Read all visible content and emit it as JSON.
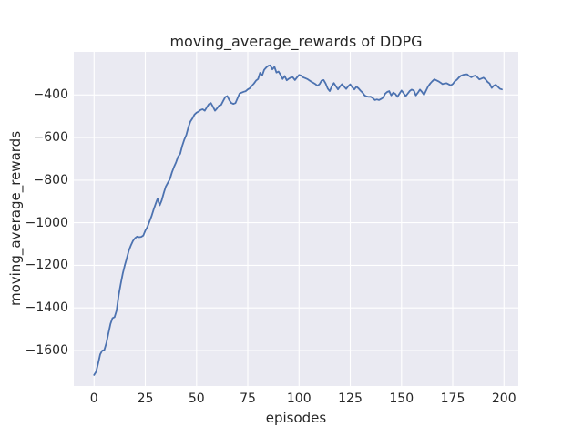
{
  "chart_data": {
    "type": "line",
    "title": "moving_average_rewards of DDPG",
    "xlabel": "episodes",
    "ylabel": "moving_average_rewards",
    "x_ticks": [
      0,
      25,
      50,
      75,
      100,
      125,
      150,
      175,
      200
    ],
    "x_tick_labels": [
      "0",
      "25",
      "50",
      "75",
      "100",
      "125",
      "150",
      "175",
      "200"
    ],
    "y_ticks": [
      -400,
      -600,
      -800,
      -1000,
      -1200,
      -1400,
      -1600
    ],
    "y_tick_labels": [
      "−400",
      "−600",
      "−800",
      "−1000",
      "−1200",
      "−1400",
      "−1600"
    ],
    "xlim": [
      -9.9,
      207.0
    ],
    "ylim": [
      -1766.8,
      -197.8
    ],
    "grid": true,
    "legend": "none",
    "colors": {
      "line": "#4c72b0",
      "plot_background": "#eaeaf2",
      "grid": "#ffffff",
      "text": "#262626",
      "figure_background": "#ffffff"
    },
    "series": [
      {
        "name": "moving_average_rewards",
        "x_start": 0,
        "x_step": 1,
        "values": [
          -1715,
          -1700,
          -1660,
          -1618,
          -1600,
          -1598,
          -1565,
          -1520,
          -1475,
          -1448,
          -1443,
          -1412,
          -1340,
          -1288,
          -1238,
          -1200,
          -1165,
          -1130,
          -1105,
          -1085,
          -1072,
          -1065,
          -1068,
          -1066,
          -1060,
          -1037,
          -1020,
          -995,
          -970,
          -940,
          -912,
          -887,
          -918,
          -895,
          -860,
          -830,
          -812,
          -795,
          -763,
          -738,
          -716,
          -690,
          -676,
          -640,
          -610,
          -588,
          -552,
          -525,
          -510,
          -492,
          -483,
          -478,
          -470,
          -467,
          -474,
          -458,
          -443,
          -438,
          -455,
          -474,
          -463,
          -450,
          -446,
          -428,
          -410,
          -405,
          -425,
          -438,
          -442,
          -438,
          -415,
          -393,
          -389,
          -385,
          -382,
          -374,
          -368,
          -357,
          -346,
          -333,
          -325,
          -296,
          -309,
          -282,
          -271,
          -263,
          -261,
          -280,
          -268,
          -295,
          -290,
          -305,
          -325,
          -311,
          -331,
          -324,
          -318,
          -317,
          -330,
          -318,
          -306,
          -309,
          -317,
          -321,
          -325,
          -331,
          -338,
          -343,
          -349,
          -357,
          -349,
          -333,
          -330,
          -346,
          -370,
          -382,
          -359,
          -344,
          -359,
          -374,
          -360,
          -349,
          -361,
          -372,
          -359,
          -350,
          -364,
          -374,
          -361,
          -369,
          -380,
          -389,
          -402,
          -407,
          -409,
          -408,
          -415,
          -424,
          -421,
          -424,
          -419,
          -413,
          -394,
          -386,
          -382,
          -402,
          -389,
          -395,
          -409,
          -394,
          -379,
          -391,
          -406,
          -394,
          -381,
          -375,
          -379,
          -402,
          -389,
          -375,
          -386,
          -399,
          -379,
          -360,
          -346,
          -336,
          -327,
          -331,
          -336,
          -342,
          -349,
          -346,
          -345,
          -350,
          -355,
          -349,
          -336,
          -329,
          -318,
          -310,
          -306,
          -304,
          -303,
          -311,
          -317,
          -312,
          -309,
          -317,
          -327,
          -323,
          -319,
          -327,
          -339,
          -346,
          -367,
          -357,
          -352,
          -361,
          -371,
          -374
        ]
      }
    ]
  }
}
